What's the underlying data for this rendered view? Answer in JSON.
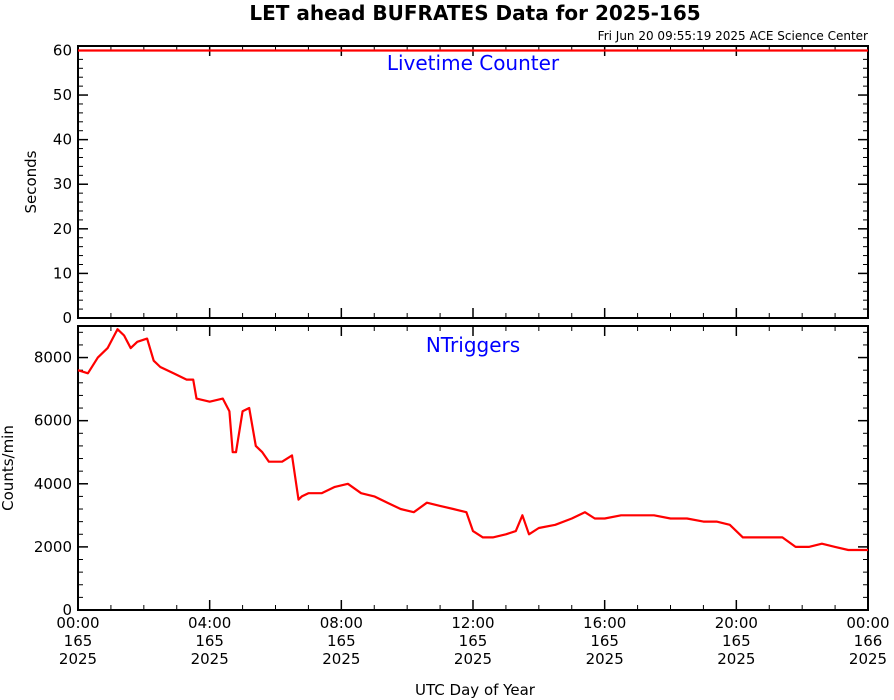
{
  "title": "LET ahead BUFRATES Data for 2025-165",
  "subtitle": "Fri Jun 20 09:55:19 2025 ACE Science Center",
  "xlabel": "UTC Day of Year",
  "colors": {
    "series": "#ff0000",
    "panel_title": "#0000ff",
    "axis": "#000000"
  },
  "x_ticks": [
    {
      "time": "00:00",
      "doy": "165",
      "year": "2025"
    },
    {
      "time": "04:00",
      "doy": "165",
      "year": "2025"
    },
    {
      "time": "08:00",
      "doy": "165",
      "year": "2025"
    },
    {
      "time": "12:00",
      "doy": "165",
      "year": "2025"
    },
    {
      "time": "16:00",
      "doy": "165",
      "year": "2025"
    },
    {
      "time": "20:00",
      "doy": "165",
      "year": "2025"
    },
    {
      "time": "00:00",
      "doy": "166",
      "year": "2025"
    }
  ],
  "chart_data": [
    {
      "type": "line",
      "title": "Livetime Counter",
      "ylabel": "Seconds",
      "xlim": [
        0,
        24
      ],
      "ylim": [
        0,
        61
      ],
      "yticks": [
        0,
        10,
        20,
        30,
        40,
        50,
        60
      ],
      "grid": false,
      "series": [
        {
          "x": [
            0,
            24
          ],
          "values": [
            60,
            60
          ]
        }
      ]
    },
    {
      "type": "line",
      "title": "NTriggers",
      "ylabel": "Counts/min",
      "xlim": [
        0,
        24
      ],
      "ylim": [
        0,
        9000
      ],
      "yticks": [
        0,
        2000,
        4000,
        6000,
        8000
      ],
      "grid": false,
      "series": [
        {
          "x": [
            0.0,
            0.3,
            0.6,
            0.9,
            1.2,
            1.4,
            1.6,
            1.8,
            2.1,
            2.3,
            2.5,
            2.9,
            3.3,
            3.5,
            3.6,
            4.0,
            4.4,
            4.6,
            4.7,
            4.8,
            5.0,
            5.2,
            5.4,
            5.6,
            5.8,
            6.2,
            6.5,
            6.7,
            6.8,
            7.0,
            7.4,
            7.8,
            8.2,
            8.6,
            9.0,
            9.4,
            9.8,
            10.2,
            10.6,
            11.0,
            11.4,
            11.8,
            12.0,
            12.3,
            12.6,
            13.0,
            13.3,
            13.5,
            13.7,
            14.0,
            14.5,
            15.0,
            15.4,
            15.7,
            16.0,
            16.5,
            17.0,
            17.5,
            18.0,
            18.5,
            19.0,
            19.4,
            19.8,
            20.2,
            20.6,
            21.0,
            21.4,
            21.8,
            22.2,
            22.6,
            23.0,
            23.4,
            24.0
          ],
          "values": [
            7600,
            7500,
            8000,
            8300,
            8900,
            8700,
            8300,
            8500,
            8600,
            7900,
            7700,
            7500,
            7300,
            7300,
            6700,
            6600,
            6700,
            6300,
            5000,
            5000,
            6300,
            6400,
            5200,
            5000,
            4700,
            4700,
            4900,
            3500,
            3600,
            3700,
            3700,
            3900,
            4000,
            3700,
            3600,
            3400,
            3200,
            3100,
            3400,
            3300,
            3200,
            3100,
            2500,
            2300,
            2300,
            2400,
            2500,
            3000,
            2400,
            2600,
            2700,
            2900,
            3100,
            2900,
            2900,
            3000,
            3000,
            3000,
            2900,
            2900,
            2800,
            2800,
            2700,
            2300,
            2300,
            2300,
            2300,
            2000,
            2000,
            2100,
            2000,
            1900,
            1900
          ]
        }
      ]
    }
  ]
}
